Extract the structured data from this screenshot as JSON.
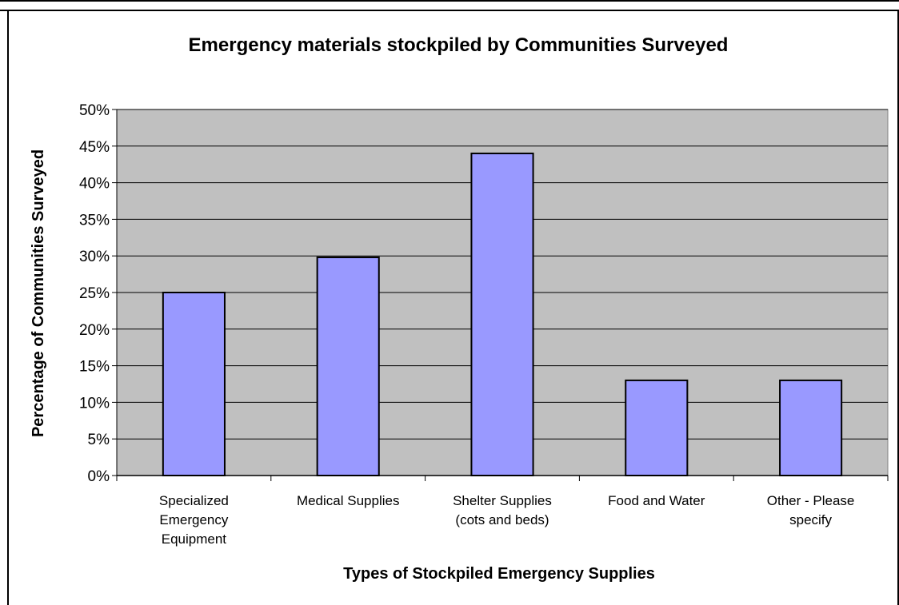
{
  "chart_data": {
    "type": "bar",
    "title": "Emergency materials stockpiled by Communities Surveyed",
    "xlabel": "Types of Stockpiled Emergency Supplies",
    "ylabel": "Percentage of Communities Surveyed",
    "categories": [
      [
        "Specialized",
        "Emergency",
        "Equipment"
      ],
      [
        "Medical Supplies"
      ],
      [
        "Shelter Supplies",
        "(cots and beds)"
      ],
      [
        "Food and Water"
      ],
      [
        "Other - Please",
        "specify"
      ]
    ],
    "values": [
      25,
      29.8,
      44,
      13,
      13
    ],
    "ylim": [
      0,
      50
    ],
    "yticks": [
      0,
      5,
      10,
      15,
      20,
      25,
      30,
      35,
      40,
      45,
      50
    ],
    "ytick_labels": [
      "0%",
      "5%",
      "10%",
      "15%",
      "20%",
      "25%",
      "30%",
      "35%",
      "40%",
      "45%",
      "50%"
    ],
    "grid": true,
    "colors": {
      "bar": "#9999FF",
      "plot_bg": "#C0C0C0",
      "grid": "#000000"
    }
  }
}
